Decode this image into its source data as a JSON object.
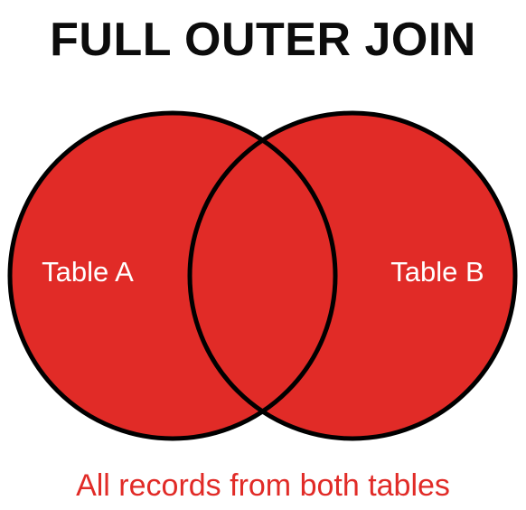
{
  "title": "FULL OUTER JOIN",
  "caption": "All records from both tables",
  "sets": {
    "left_label": "Table A",
    "right_label": "Table B"
  },
  "colors": {
    "fill": "#e12b27",
    "outline": "#000000",
    "caption": "#e12b27",
    "label": "#ffffff",
    "title": "#0c0c0c"
  }
}
